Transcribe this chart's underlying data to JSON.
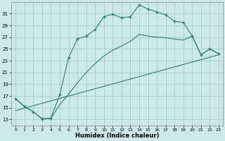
{
  "xlabel": "Humidex (Indice chaleur)",
  "background_color": "#cce8e8",
  "grid_color": "#aacfcf",
  "line_color": "#2d7f6f",
  "xlim": [
    -0.5,
    23.5
  ],
  "ylim": [
    12,
    33
  ],
  "yticks": [
    13,
    15,
    17,
    19,
    21,
    23,
    25,
    27,
    29,
    31
  ],
  "xticks": [
    0,
    1,
    2,
    3,
    4,
    5,
    6,
    7,
    8,
    9,
    10,
    11,
    12,
    13,
    14,
    15,
    16,
    17,
    18,
    19,
    20,
    21,
    22,
    23
  ],
  "line1_x": [
    0,
    1,
    2,
    3,
    4,
    5,
    6,
    7,
    8,
    9,
    10,
    11,
    12,
    13,
    14,
    15,
    16,
    17,
    18,
    19,
    20,
    21,
    22,
    23
  ],
  "line1_y": [
    16.5,
    15.2,
    14.3,
    13.1,
    13.2,
    17.2,
    23.5,
    26.7,
    27.2,
    28.3,
    30.5,
    30.9,
    30.3,
    30.5,
    32.5,
    31.8,
    31.3,
    30.8,
    29.7,
    29.5,
    27.2,
    24.0,
    25.0,
    24.2
  ],
  "line2_x": [
    0,
    1,
    2,
    3,
    4,
    5,
    6,
    7,
    8,
    9,
    10,
    11,
    12,
    13,
    14,
    15,
    16,
    17,
    18,
    19,
    20,
    21,
    22,
    23
  ],
  "line2_y": [
    16.5,
    15.2,
    14.3,
    13.1,
    13.2,
    15.5,
    17.3,
    19.2,
    21.0,
    22.5,
    23.8,
    24.8,
    25.5,
    26.3,
    27.5,
    27.2,
    27.0,
    26.9,
    26.7,
    26.5,
    27.2,
    24.0,
    25.0,
    24.2
  ],
  "line3_x": [
    0,
    23
  ],
  "line3_y": [
    14.5,
    24.0
  ]
}
